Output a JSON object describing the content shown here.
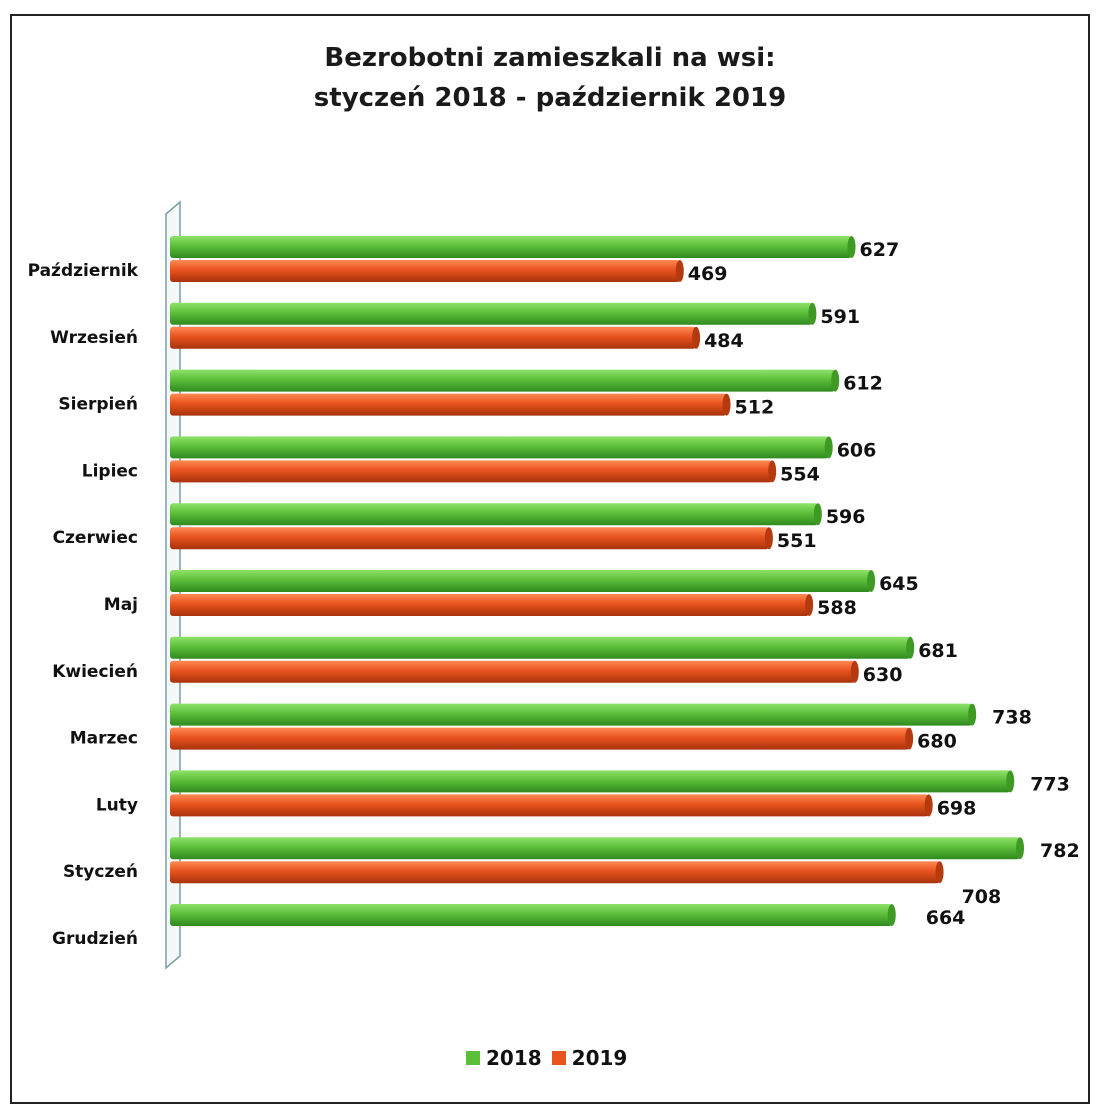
{
  "chart_data": {
    "type": "bar",
    "orientation": "horizontal",
    "title_line1": "Bezrobotni zamieszkali na wsi:",
    "title_line2": "styczeń 2018 - październik 2019",
    "categories": [
      "Październik",
      "Wrzesień",
      "Sierpień",
      "Lipiec",
      "Czerwiec",
      "Maj",
      "Kwiecień",
      "Marzec",
      "Luty",
      "Styczeń",
      "Grudzień"
    ],
    "series": [
      {
        "name": "2018",
        "color": "#5cbf3a",
        "values": [
          627,
          591,
          612,
          606,
          596,
          645,
          681,
          738,
          773,
          782,
          664
        ]
      },
      {
        "name": "2019",
        "color": "#e8531e",
        "values": [
          469,
          484,
          512,
          554,
          551,
          588,
          630,
          680,
          698,
          708,
          null
        ]
      }
    ],
    "value_labels": [
      [
        "627",
        "591",
        "612",
        "606",
        "596",
        "645",
        "681",
        "738",
        "773",
        "782",
        "664"
      ],
      [
        "469",
        "484",
        "512",
        "554",
        "551",
        "588",
        "630",
        "680",
        "698",
        "708",
        ""
      ]
    ],
    "legend_placement": "bottom",
    "grid": false
  }
}
